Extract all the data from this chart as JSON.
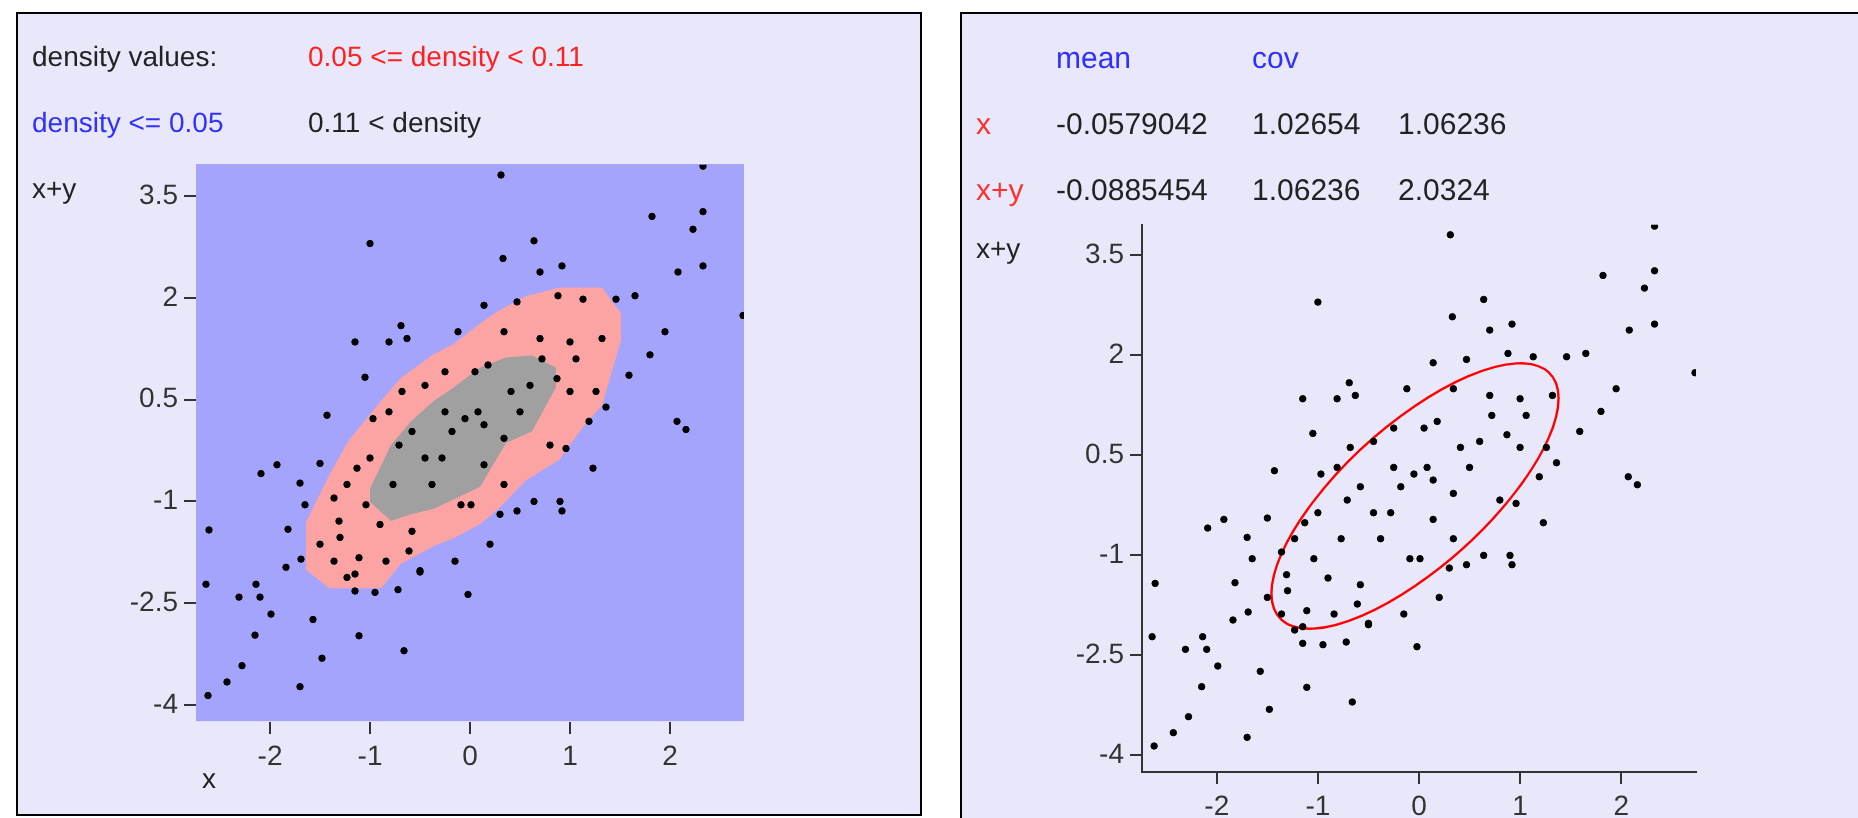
{
  "chart_data": [
    {
      "type": "scatter",
      "annotations": [
        "density values:",
        "0.05 <= density < 0.11",
        "density <= 0.05",
        "0.11 < density"
      ],
      "xlabel": "x",
      "ylabel": "x+y",
      "marker": "circle",
      "grid": false,
      "xlim": [
        -2.74,
        2.74
      ],
      "ylim": [
        -4.25,
        3.96
      ],
      "xticks": [
        -2,
        -1,
        0,
        1,
        2
      ],
      "yticks": [
        3.5,
        2,
        0.5,
        -1,
        -2.5,
        -4
      ],
      "series": [
        {
          "type": "scatter",
          "color": "#000000",
          "x": [
            2.33,
            0.31,
            2.33,
            1.82,
            2.23,
            2.33,
            2.08,
            -1.0,
            0.64,
            0.33,
            0.7,
            0.92,
            2.73,
            1.8,
            2.07,
            2.16,
            1.59,
            1.95,
            1.65,
            1.46,
            1.36,
            1.23,
            0.92,
            0.9,
            0.2,
            -0.02,
            -0.15,
            -0.5,
            -0.66,
            -1.11,
            -1.48,
            -1.57,
            -1.7,
            -2.28,
            -2.43,
            -2.62,
            -2.64,
            -2.61,
            -2.14,
            -2.1,
            -1.99,
            -2.15,
            -2.31,
            -1.84,
            -1.69,
            -1.82,
            -2.09,
            -1.93,
            -1.7,
            -1.5,
            -1.43,
            -1.65,
            -1.31,
            -1.3,
            -1.15,
            -1.15,
            -0.95,
            -0.72,
            -1.15,
            -1.05,
            -0.97,
            -0.81,
            -0.69,
            -0.63,
            -0.81,
            -1.0,
            -1.13,
            -1.04,
            -0.9,
            -0.77,
            -0.84,
            -0.58,
            -0.5,
            -0.61,
            -0.38,
            -0.28,
            -0.18,
            -0.05,
            0.08,
            0.14,
            -0.09,
            0.01,
            0.14,
            0.34,
            0.47,
            0.64,
            0.3,
            0.34,
            0.5,
            0.6,
            0.41,
            0.18,
            0.05,
            -0.12,
            0.14,
            0.34,
            0.47,
            0.72,
            0.87,
            1.0,
            1.06,
            0.96,
            0.8,
            1.26,
            1.19,
            1.13,
            1.32,
            0.88,
            1.0,
            0.7,
            -0.25,
            -0.45,
            -0.58,
            -0.71,
            -0.45,
            -0.25,
            -0.68,
            -1.23,
            -1.11,
            -1.36,
            -1.5,
            -1.36,
            -1.23
          ],
          "values": [
            3.94,
            3.81,
            3.27,
            3.2,
            3.01,
            2.47,
            2.38,
            2.8,
            2.84,
            2.58,
            2.38,
            2.47,
            1.74,
            1.16,
            0.18,
            0.06,
            0.86,
            1.5,
            2.03,
            1.98,
            0.39,
            -0.51,
            -1.14,
            -1.0,
            -1.63,
            -2.37,
            -1.88,
            -2.04,
            -3.2,
            -2.98,
            -3.31,
            -2.74,
            -3.73,
            -3.42,
            -3.66,
            -3.86,
            -2.22,
            -1.42,
            -2.22,
            -2.41,
            -2.66,
            -2.97,
            -2.41,
            -1.97,
            -1.85,
            -1.41,
            -0.59,
            -0.46,
            -0.73,
            -0.44,
            0.27,
            -1.05,
            -1.29,
            -1.53,
            -2.07,
            -2.32,
            -2.34,
            -2.3,
            1.35,
            0.83,
            0.22,
            0.32,
            1.59,
            1.4,
            1.35,
            -0.36,
            -0.51,
            -1.05,
            -1.34,
            -0.75,
            -1.88,
            -1.44,
            -2.02,
            -1.73,
            -0.75,
            -0.36,
            0.03,
            0.22,
            0.32,
            0.13,
            -1.05,
            -1.05,
            -0.46,
            -0.75,
            -1.14,
            -1.0,
            -1.19,
            -0.07,
            0.32,
            0.71,
            0.62,
            1.01,
            0.91,
            1.5,
            1.89,
            1.5,
            1.94,
            1.1,
            0.81,
            0.62,
            1.1,
            -0.22,
            -0.17,
            0.62,
            0.18,
            1.98,
            1.4,
            2.03,
            1.35,
            1.4,
            0.91,
            0.71,
            0.03,
            -0.17,
            -0.36,
            0.32,
            0.62,
            -2.12,
            -1.83,
            -1.88,
            -1.63,
            -0.95,
            -0.75
          ]
        }
      ]
    },
    {
      "type": "scatter",
      "ylabel": "x+y",
      "annotations": [
        "mean",
        "cov",
        "x",
        "-0.0579042",
        "1.02654",
        "1.06236",
        "x+y",
        "-0.0885454",
        "1.06236",
        "2.0324"
      ],
      "marker": "circle",
      "grid": false,
      "xlim": [
        -2.74,
        2.74
      ],
      "ylim": [
        -4.25,
        3.96
      ],
      "xticks": [
        -2,
        -1,
        0,
        1,
        2
      ],
      "yticks": [
        3.5,
        2,
        0.5,
        -1,
        -2.5,
        -4
      ],
      "series": [
        {
          "type": "scatter",
          "color": "#000000",
          "x": [
            2.33,
            0.31,
            2.33,
            1.82,
            2.23,
            2.33,
            2.08,
            -1.0,
            0.64,
            0.33,
            0.7,
            0.92,
            2.73,
            1.8,
            2.07,
            2.16,
            1.59,
            1.95,
            1.65,
            1.46,
            1.36,
            1.23,
            0.92,
            0.9,
            0.2,
            -0.02,
            -0.15,
            -0.5,
            -0.66,
            -1.11,
            -1.48,
            -1.57,
            -1.7,
            -2.28,
            -2.43,
            -2.62,
            -2.64,
            -2.61,
            -2.14,
            -2.1,
            -1.99,
            -2.15,
            -2.31,
            -1.84,
            -1.69,
            -1.82,
            -2.09,
            -1.93,
            -1.7,
            -1.5,
            -1.43,
            -1.65,
            -1.31,
            -1.3,
            -1.15,
            -1.15,
            -0.95,
            -0.72,
            -1.15,
            -1.05,
            -0.97,
            -0.81,
            -0.69,
            -0.63,
            -0.81,
            -1.0,
            -1.13,
            -1.04,
            -0.9,
            -0.77,
            -0.84,
            -0.58,
            -0.5,
            -0.61,
            -0.38,
            -0.28,
            -0.18,
            -0.05,
            0.08,
            0.14,
            -0.09,
            0.01,
            0.14,
            0.34,
            0.47,
            0.64,
            0.3,
            0.34,
            0.5,
            0.6,
            0.41,
            0.18,
            0.05,
            -0.12,
            0.14,
            0.34,
            0.47,
            0.72,
            0.87,
            1.0,
            1.06,
            0.96,
            0.8,
            1.26,
            1.19,
            1.13,
            1.32,
            0.88,
            1.0,
            0.7,
            -0.25,
            -0.45,
            -0.58,
            -0.71,
            -0.45,
            -0.25,
            -0.68,
            -1.23,
            -1.11,
            -1.36,
            -1.5,
            -1.36,
            -1.23
          ],
          "values": [
            3.94,
            3.81,
            3.27,
            3.2,
            3.01,
            2.47,
            2.38,
            2.8,
            2.84,
            2.58,
            2.38,
            2.47,
            1.74,
            1.16,
            0.18,
            0.06,
            0.86,
            1.5,
            2.03,
            1.98,
            0.39,
            -0.51,
            -1.14,
            -1.0,
            -1.63,
            -2.37,
            -1.88,
            -2.04,
            -3.2,
            -2.98,
            -3.31,
            -2.74,
            -3.73,
            -3.42,
            -3.66,
            -3.86,
            -2.22,
            -1.42,
            -2.22,
            -2.41,
            -2.66,
            -2.97,
            -2.41,
            -1.97,
            -1.85,
            -1.41,
            -0.59,
            -0.46,
            -0.73,
            -0.44,
            0.27,
            -1.05,
            -1.29,
            -1.53,
            -2.07,
            -2.32,
            -2.34,
            -2.3,
            1.35,
            0.83,
            0.22,
            0.32,
            1.59,
            1.4,
            1.35,
            -0.36,
            -0.51,
            -1.05,
            -1.34,
            -0.75,
            -1.88,
            -1.44,
            -2.02,
            -1.73,
            -0.75,
            -0.36,
            0.03,
            0.22,
            0.32,
            0.13,
            -1.05,
            -1.05,
            -0.46,
            -0.75,
            -1.14,
            -1.0,
            -1.19,
            -0.07,
            0.32,
            0.71,
            0.62,
            1.01,
            0.91,
            1.5,
            1.89,
            1.5,
            1.94,
            1.1,
            0.81,
            0.62,
            1.1,
            -0.22,
            -0.17,
            0.62,
            0.18,
            1.98,
            1.4,
            2.03,
            1.35,
            1.4,
            0.91,
            0.71,
            0.03,
            -0.17,
            -0.36,
            0.32,
            0.62,
            -2.12,
            -1.83,
            -1.88,
            -1.63,
            -0.95,
            -0.75
          ]
        }
      ]
    }
  ]
}
